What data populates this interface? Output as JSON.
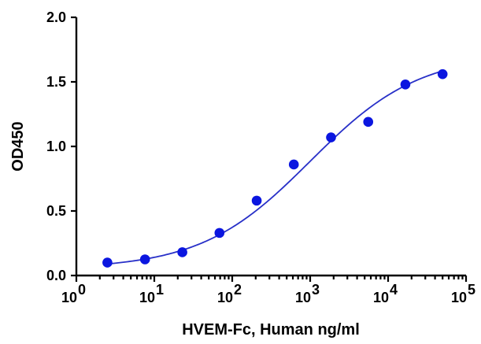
{
  "chart_data": {
    "type": "scatter",
    "xlabel": "HVEM-Fc, Human ng/ml",
    "ylabel": "OD450",
    "x_scale": "log",
    "xlim": [
      1,
      100000
    ],
    "ylim": [
      0,
      2.0
    ],
    "x_ticks": [
      {
        "base": "10",
        "exp": "0",
        "value": 1
      },
      {
        "base": "10",
        "exp": "1",
        "value": 10
      },
      {
        "base": "10",
        "exp": "2",
        "value": 100
      },
      {
        "base": "10",
        "exp": "3",
        "value": 1000
      },
      {
        "base": "10",
        "exp": "4",
        "value": 10000
      },
      {
        "base": "10",
        "exp": "5",
        "value": 100000
      }
    ],
    "y_ticks": [
      {
        "label": "0.0",
        "value": 0.0
      },
      {
        "label": "0.5",
        "value": 0.5
      },
      {
        "label": "1.0",
        "value": 1.0
      },
      {
        "label": "1.5",
        "value": 1.5
      },
      {
        "label": "2.0",
        "value": 2.0
      }
    ],
    "series": [
      {
        "x": [
          2.5,
          7.6,
          22.9,
          68.6,
          206,
          617,
          1852,
          5556,
          16667,
          50000
        ],
        "y": [
          0.1,
          0.125,
          0.18,
          0.33,
          0.58,
          0.86,
          1.07,
          1.19,
          1.48,
          1.56
        ],
        "color": "#0b16e0"
      }
    ],
    "fit_curve": {
      "model": "4PL",
      "bottom": 0.05,
      "top": 1.72,
      "ec50": 1000,
      "hill": 0.62,
      "color": "#2830c8"
    },
    "grid": false
  }
}
